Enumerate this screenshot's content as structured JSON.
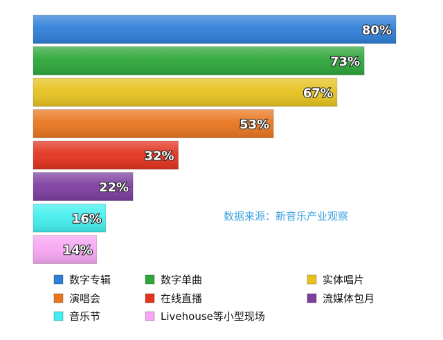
{
  "chart_data": {
    "type": "bar",
    "orientation": "horizontal",
    "categories": [
      "数字专辑",
      "数字单曲",
      "实体唱片",
      "演唱会",
      "在线直播",
      "流媒体包月",
      "音乐节",
      "Livehouse等小型现场"
    ],
    "values": [
      80,
      73,
      67,
      53,
      32,
      22,
      16,
      14
    ],
    "value_labels": [
      "80%",
      "73%",
      "67%",
      "53%",
      "32%",
      "22%",
      "16%",
      "14%"
    ],
    "colors": [
      "#2f7fd8",
      "#2ea63a",
      "#e6c21f",
      "#e8761f",
      "#e2331f",
      "#7d3fa0",
      "#44eeee",
      "#f6a6f2"
    ],
    "xlim": [
      0,
      80
    ],
    "grid": false,
    "legend": {
      "position": "bottom",
      "entries": [
        "数字专辑",
        "数字单曲",
        "实体唱片",
        "演唱会",
        "在线直播",
        "流媒体包月",
        "音乐节",
        "Livehouse等小型现场"
      ]
    },
    "annotation": "数据来源：新音乐产业观察"
  }
}
